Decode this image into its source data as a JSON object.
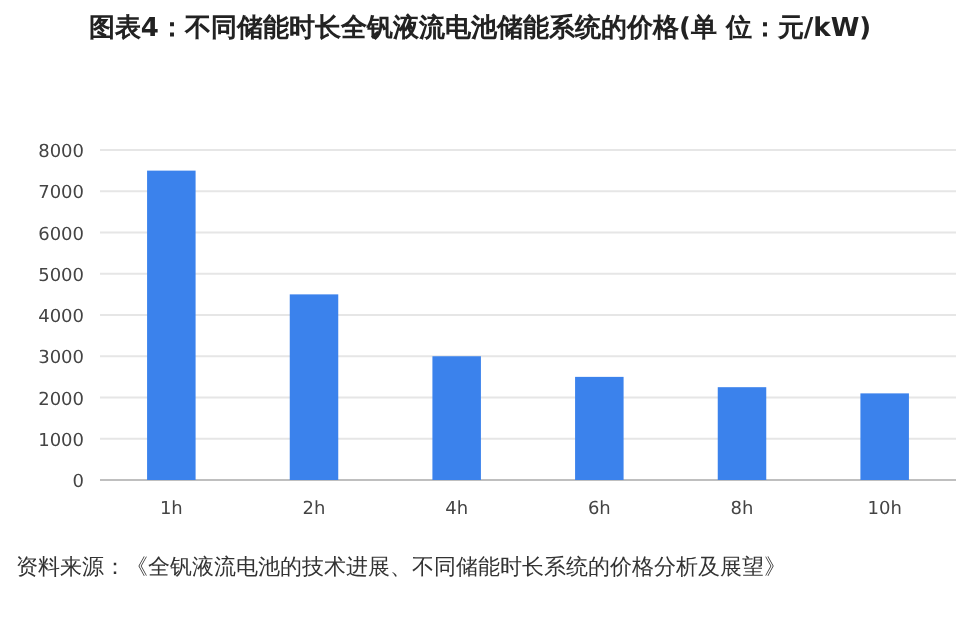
{
  "chart_data": {
    "type": "bar",
    "title": "图表4：不同储能时长全钒液流电池储能系统的价格(单 位：元/kW)",
    "categories": [
      "1h",
      "2h",
      "4h",
      "6h",
      "8h",
      "10h"
    ],
    "values": [
      7500,
      4500,
      3000,
      2500,
      2250,
      2100
    ],
    "color": "#3b82ec",
    "ylim": [
      0,
      8000
    ],
    "yticks": [
      0,
      1000,
      2000,
      3000,
      4000,
      5000,
      6000,
      7000,
      8000
    ],
    "grid": "y",
    "annotations": [
      "资料来源：《全钒液流电池的技术进展、不同储能时长系统的价格分析及展望》"
    ]
  }
}
